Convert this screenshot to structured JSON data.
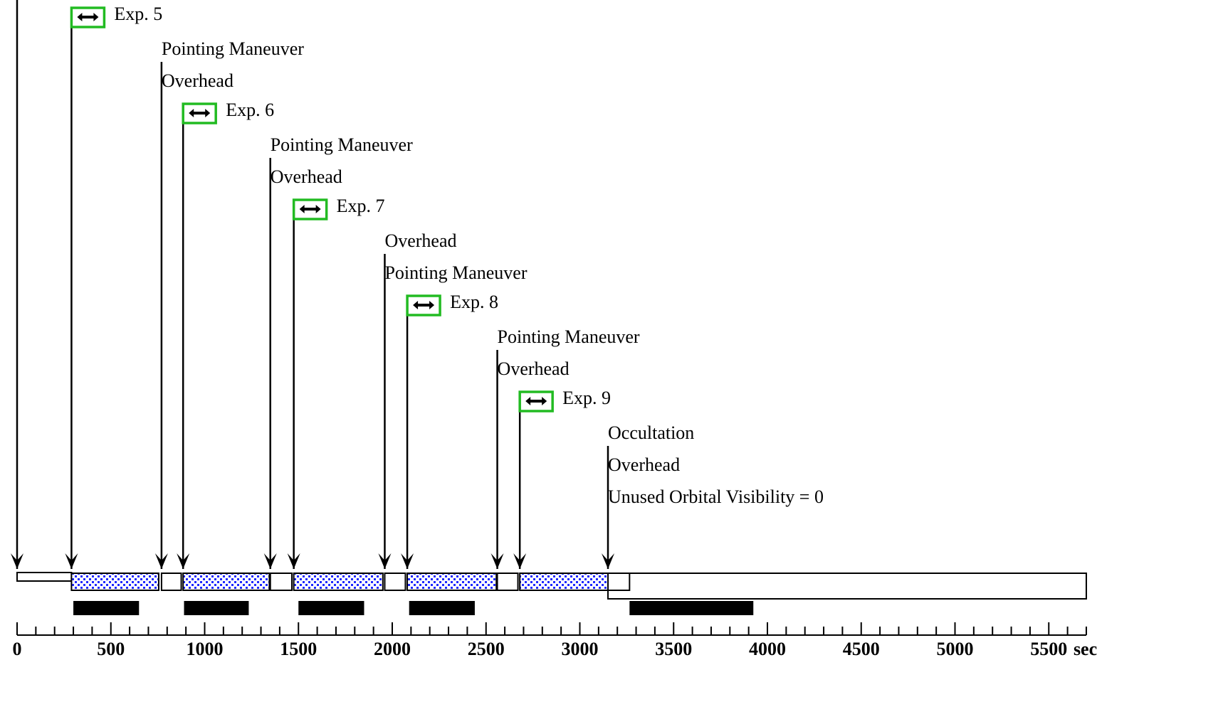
{
  "chart_data": {
    "type": "timeline",
    "x_unit": "sec",
    "x_ticks": [
      0,
      500,
      1000,
      1500,
      2000,
      2500,
      3000,
      3500,
      4000,
      4500,
      5000,
      5500
    ],
    "x_range": [
      0,
      5700
    ],
    "events": [
      {
        "name": "Exp. 5",
        "time": 290,
        "type": "exposure"
      },
      {
        "name": "Pointing Maneuver",
        "time": 770,
        "type": "text"
      },
      {
        "name": "Overhead",
        "time": 770,
        "type": "text"
      },
      {
        "name": "Exp. 6",
        "time": 885,
        "type": "exposure"
      },
      {
        "name": "Pointing Maneuver",
        "time": 1350,
        "type": "text"
      },
      {
        "name": "Overhead",
        "time": 1350,
        "type": "text"
      },
      {
        "name": "Exp. 7",
        "time": 1475,
        "type": "exposure"
      },
      {
        "name": "Overhead",
        "time": 1960,
        "type": "text"
      },
      {
        "name": "Pointing Maneuver",
        "time": 1960,
        "type": "text"
      },
      {
        "name": "Exp. 8",
        "time": 2080,
        "type": "exposure"
      },
      {
        "name": "Pointing Maneuver",
        "time": 2560,
        "type": "text"
      },
      {
        "name": "Overhead",
        "time": 2560,
        "type": "text"
      },
      {
        "name": "Exp. 9",
        "time": 2680,
        "type": "exposure"
      },
      {
        "name": "Occultation",
        "time": 3150,
        "type": "text"
      },
      {
        "name": "Overhead",
        "time": 3150,
        "type": "text"
      },
      {
        "name": "Unused Orbital Visibility = 0",
        "time": 3150,
        "type": "text"
      }
    ],
    "exposure_blocks": [
      {
        "start": 290,
        "end": 755
      },
      {
        "start": 885,
        "end": 1345
      },
      {
        "start": 1475,
        "end": 1950
      },
      {
        "start": 2080,
        "end": 2555
      },
      {
        "start": 2680,
        "end": 3150
      }
    ],
    "overhead_blocks": [
      {
        "start": 0,
        "end": 290
      },
      {
        "start": 770,
        "end": 875
      },
      {
        "start": 1350,
        "end": 1465
      },
      {
        "start": 1960,
        "end": 2070
      },
      {
        "start": 2560,
        "end": 2670
      },
      {
        "start": 3150,
        "end": 3265
      }
    ],
    "occultation_block": {
      "start": 3150,
      "end": 5700
    },
    "visibility_bars": [
      {
        "start": 300,
        "end": 650
      },
      {
        "start": 890,
        "end": 1235
      },
      {
        "start": 1500,
        "end": 1850
      },
      {
        "start": 2090,
        "end": 2440
      },
      {
        "start": 3265,
        "end": 3925
      }
    ]
  },
  "colors": {
    "exposure_box": "#22bb22",
    "exposure_fill": "#1e28ff",
    "line": "#000000"
  }
}
